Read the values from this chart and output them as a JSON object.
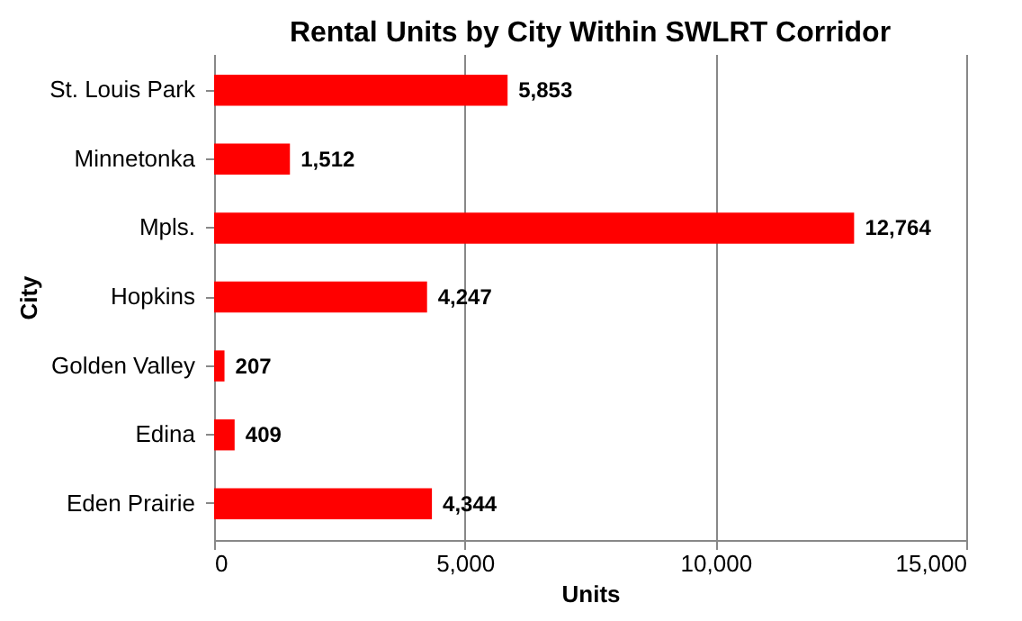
{
  "chart_data": {
    "type": "bar",
    "orientation": "horizontal",
    "title": "Rental Units by City Within SWLRT Corridor",
    "xlabel": "Units",
    "ylabel": "City",
    "categories": [
      "St. Louis Park",
      "Minnetonka",
      "Mpls.",
      "Hopkins",
      "Golden Valley",
      "Edina",
      "Eden Prairie"
    ],
    "values": [
      5853,
      1512,
      12764,
      4247,
      207,
      409,
      4344
    ],
    "value_labels": [
      "5,853",
      "1,512",
      "12,764",
      "4,247",
      "207",
      "409",
      "4,344"
    ],
    "color": "#ff0000",
    "xlim": [
      0,
      15000
    ],
    "xticks": [
      {
        "value": 0,
        "label": "0"
      },
      {
        "value": 5000,
        "label": "5,000"
      },
      {
        "value": 10000,
        "label": "10,000"
      },
      {
        "value": 15000,
        "label": "15,000"
      }
    ],
    "grid": "x"
  }
}
